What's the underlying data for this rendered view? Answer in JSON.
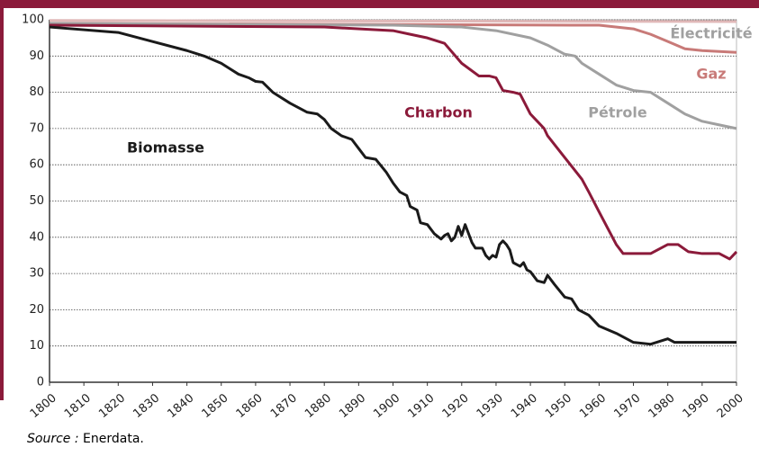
{
  "chart_data": {
    "type": "line",
    "xlim": [
      1800,
      2000
    ],
    "xticks": [
      1800,
      1810,
      1820,
      1830,
      1840,
      1850,
      1860,
      1870,
      1880,
      1890,
      1900,
      1910,
      1920,
      1930,
      1940,
      1950,
      1960,
      1970,
      1980,
      1990,
      2000
    ],
    "ylim": [
      0,
      100
    ],
    "yticks": [
      0,
      10,
      20,
      30,
      40,
      50,
      60,
      70,
      80,
      90,
      100
    ],
    "grid": true,
    "series": [
      {
        "name": "Électricité",
        "color": "#e0b8b8",
        "x": [
          1800,
          2000
        ],
        "values": [
          99.8,
          99.5
        ]
      },
      {
        "name": "Gaz",
        "color": "#c87a78",
        "x": [
          1800,
          1960,
          1970,
          1975,
          1980,
          1985,
          1990,
          2000
        ],
        "values": [
          99,
          98.5,
          97.5,
          96,
          94,
          92,
          91.5,
          91
        ]
      },
      {
        "name": "Pétrole",
        "color": "#a0a0a0",
        "x": [
          1800,
          1900,
          1920,
          1930,
          1940,
          1945,
          1950,
          1953,
          1955,
          1960,
          1965,
          1970,
          1975,
          1980,
          1985,
          1990,
          1995,
          2000
        ],
        "values": [
          99,
          98.5,
          98,
          97,
          95,
          93,
          90.5,
          90,
          88,
          85,
          82,
          80.5,
          80,
          77,
          74,
          72,
          71,
          70
        ]
      },
      {
        "name": "Charbon",
        "color": "#8b1a3a",
        "x": [
          1800,
          1880,
          1900,
          1905,
          1910,
          1915,
          1920,
          1925,
          1928,
          1930,
          1932,
          1935,
          1937,
          1940,
          1942,
          1944,
          1945,
          1950,
          1955,
          1957,
          1960,
          1965,
          1967,
          1970,
          1975,
          1980,
          1983,
          1986,
          1990,
          1995,
          1998,
          2000
        ],
        "values": [
          98.5,
          98,
          97,
          96,
          95,
          93.5,
          88,
          84.5,
          84.5,
          84,
          80.5,
          80,
          79.5,
          74,
          72,
          70,
          68,
          62,
          56,
          52.5,
          47,
          38,
          35.5,
          35.5,
          35.5,
          38,
          38,
          36,
          35.5,
          35.5,
          34,
          36
        ]
      },
      {
        "name": "Biomasse",
        "color": "#1a1a1a",
        "x": [
          1800,
          1820,
          1830,
          1840,
          1845,
          1850,
          1855,
          1858,
          1860,
          1862,
          1865,
          1870,
          1875,
          1878,
          1880,
          1882,
          1885,
          1888,
          1890,
          1892,
          1895,
          1898,
          1900,
          1902,
          1904,
          1905,
          1907,
          1908,
          1910,
          1912,
          1914,
          1915,
          1916,
          1917,
          1918,
          1919,
          1920,
          1921,
          1922,
          1923,
          1924,
          1926,
          1927,
          1928,
          1929,
          1930,
          1931,
          1932,
          1933,
          1934,
          1935,
          1936,
          1937,
          1938,
          1939,
          1940,
          1942,
          1944,
          1945,
          1947,
          1950,
          1952,
          1954,
          1957,
          1960,
          1965,
          1970,
          1975,
          1980,
          1982,
          2000
        ],
        "values": [
          98,
          96.5,
          94,
          91.5,
          90,
          88,
          85,
          84,
          83,
          82.8,
          80,
          77,
          74.5,
          74,
          72.5,
          70,
          68,
          67,
          64.5,
          62,
          61.5,
          58,
          55,
          52.5,
          51.5,
          48.5,
          47.5,
          44,
          43.5,
          41,
          39.5,
          40.5,
          41,
          39,
          40,
          43,
          40.5,
          43.5,
          41,
          38.5,
          37,
          37,
          35,
          34,
          35,
          34.5,
          38,
          39,
          38,
          36.5,
          33,
          32.5,
          32,
          33,
          31,
          30.5,
          28,
          27.5,
          29.5,
          27,
          23.5,
          23,
          20,
          18.5,
          15.5,
          13.5,
          11,
          10.5,
          12,
          11,
          11
        ]
      }
    ],
    "source": {
      "label": "Source :",
      "text": "Enerdata."
    }
  }
}
